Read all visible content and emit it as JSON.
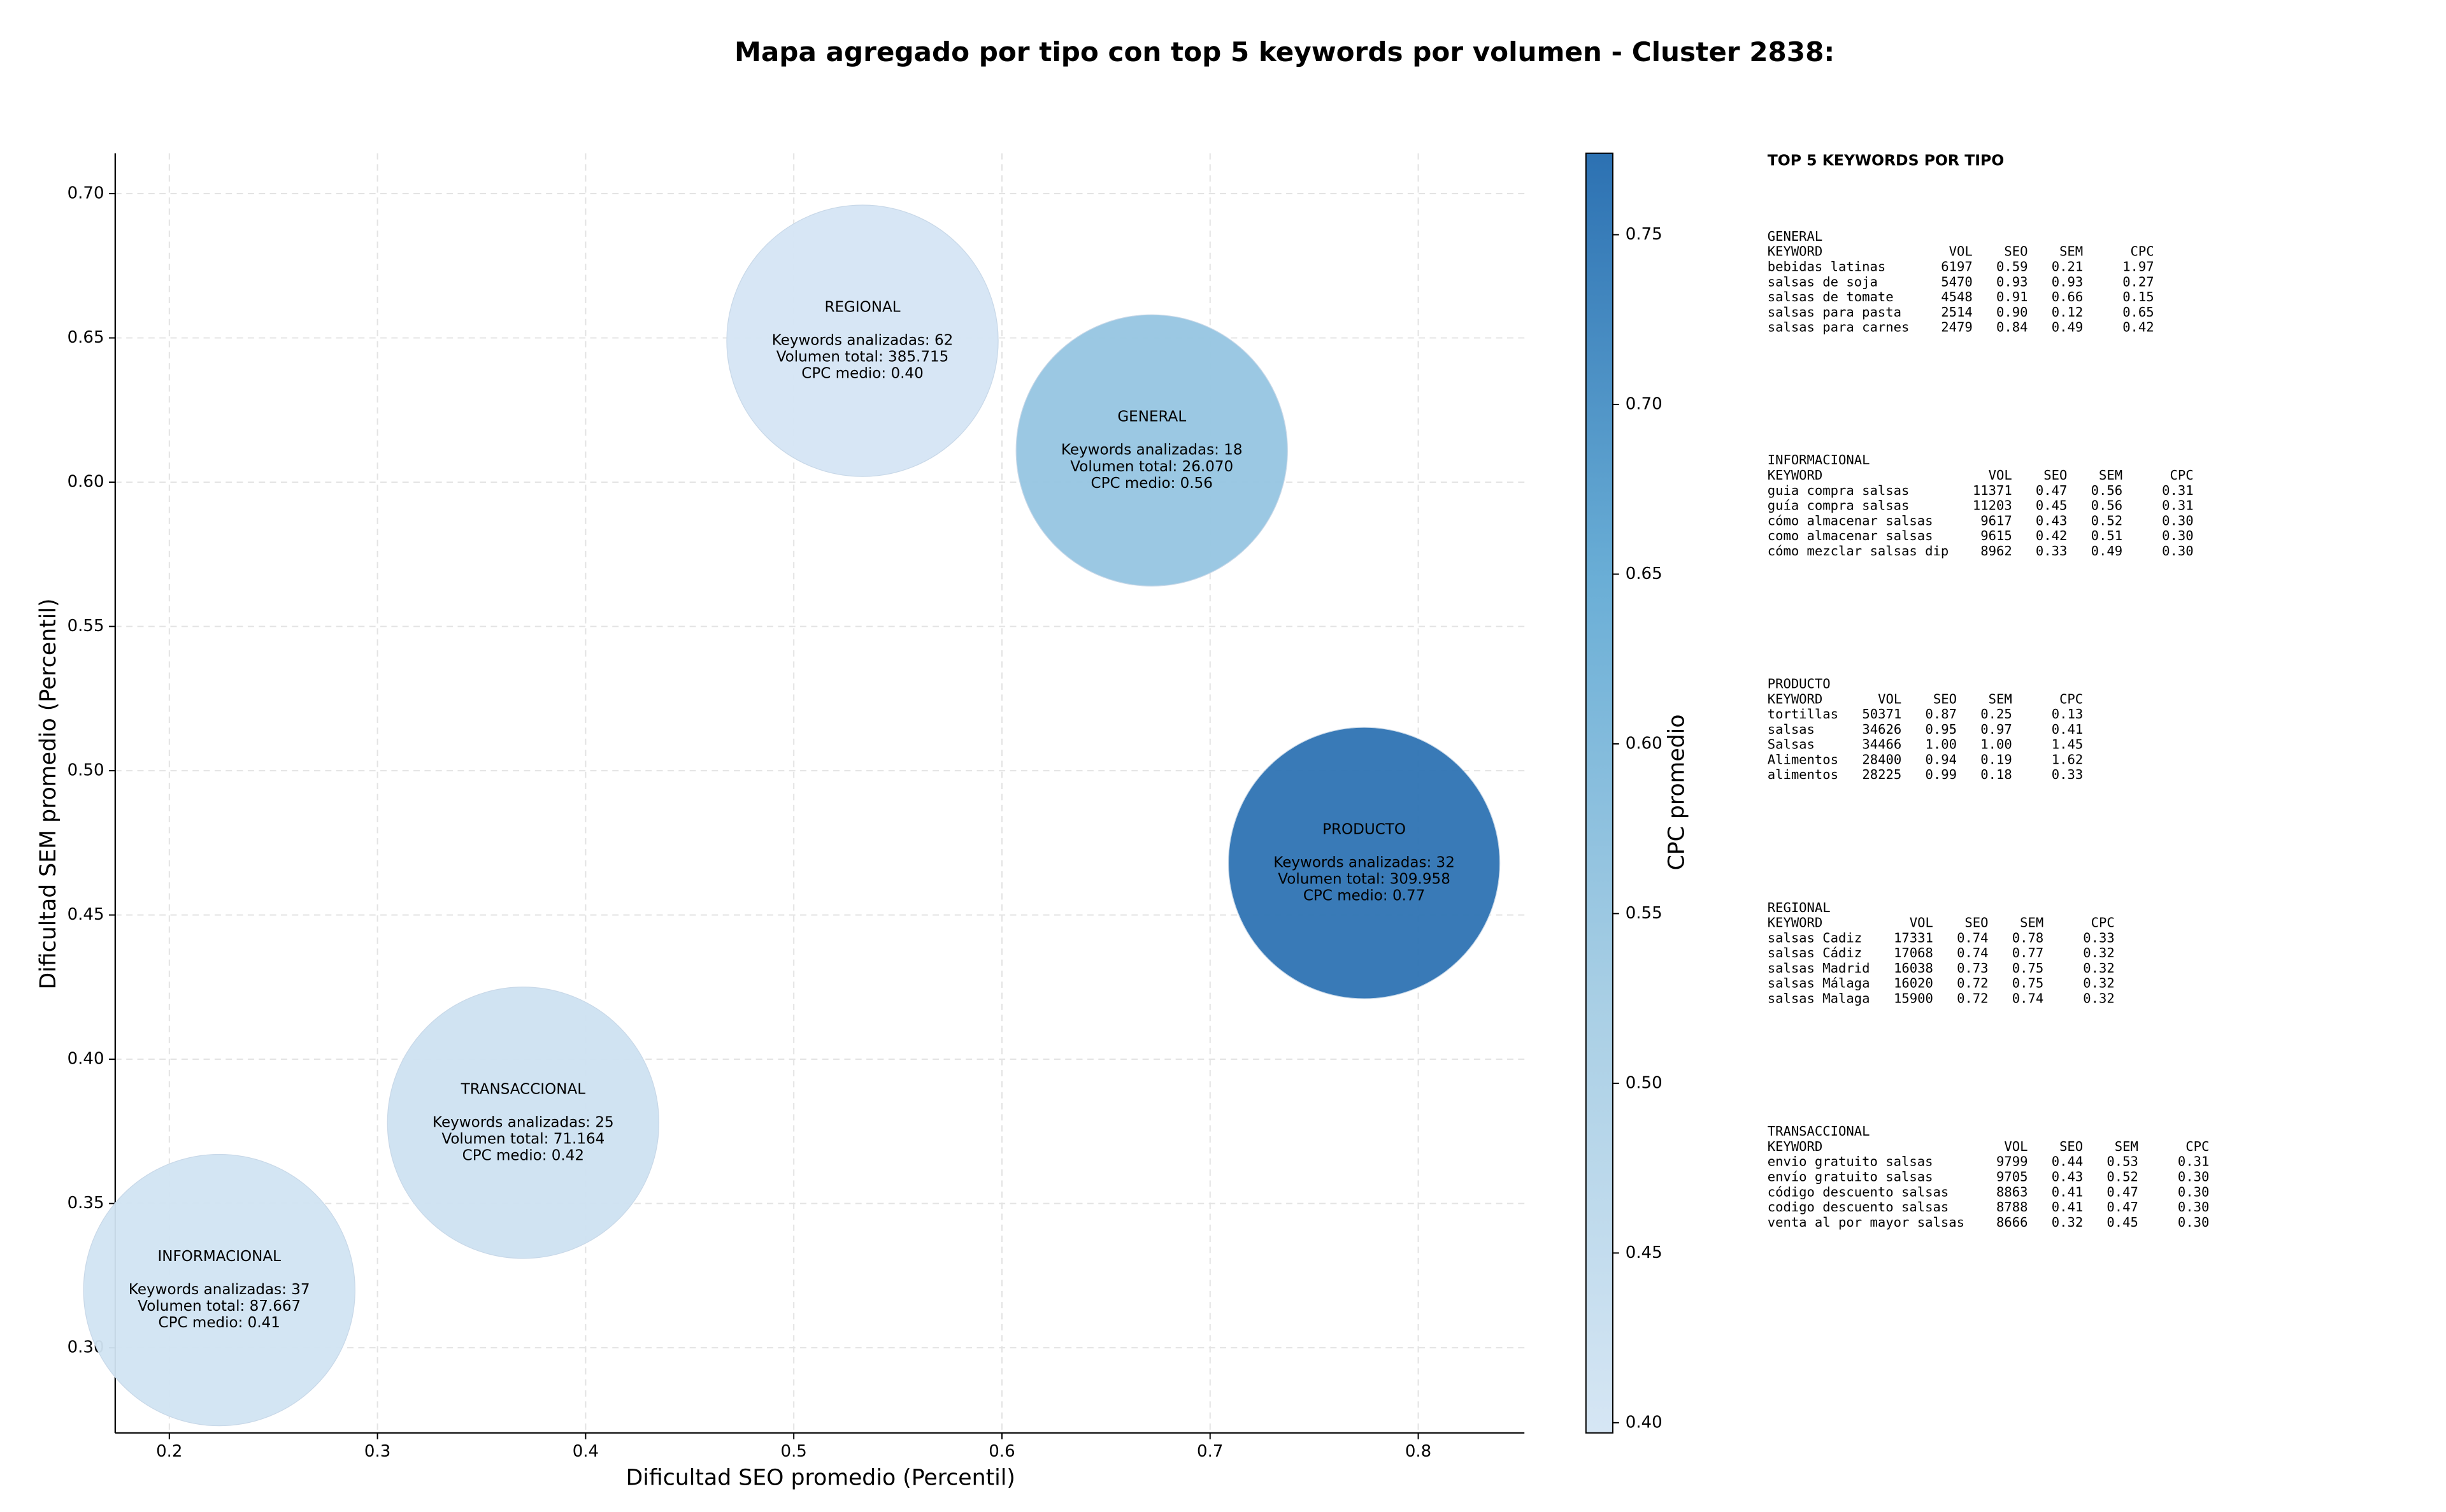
{
  "chart_data": {
    "type": "scatter",
    "title": "Mapa agregado por tipo con top 5 keywords por volumen - Cluster 2838:",
    "xlabel": "Dificultad SEO promedio (Percentil)",
    "ylabel": "Dificultad SEM promedio (Percentil)",
    "xlim": [
      0.174,
      0.851
    ],
    "ylim": [
      0.2705,
      0.714
    ],
    "xticks": [
      0.2,
      0.3,
      0.4,
      0.5,
      0.6,
      0.7,
      0.8
    ],
    "yticks": [
      {
        "value": 0.3,
        "label": "0.30"
      },
      {
        "value": 0.35,
        "label": "0.35"
      },
      {
        "value": 0.4,
        "label": "0.40"
      },
      {
        "value": 0.45,
        "label": "0.45"
      },
      {
        "value": 0.5,
        "label": "0.50"
      },
      {
        "value": 0.55,
        "label": "0.55"
      },
      {
        "value": 0.6,
        "label": "0.60"
      },
      {
        "value": 0.65,
        "label": "0.65"
      },
      {
        "value": 0.7,
        "label": "0.70"
      }
    ],
    "grid": true,
    "x": [
      0.533,
      0.672,
      0.774,
      0.37,
      0.224
    ],
    "y": [
      0.649,
      0.611,
      0.468,
      0.378,
      0.32
    ],
    "color_values": [
      0.4,
      0.56,
      0.77,
      0.42,
      0.41
    ],
    "labels": [
      "REGIONAL",
      "GENERAL",
      "PRODUCTO",
      "TRANSACCIONAL",
      "INFORMACIONAL"
    ],
    "annotations": [
      [
        "Keywords analizadas: 62",
        "Volumen total: 385.715",
        "CPC medio: 0.40"
      ],
      [
        "Keywords analizadas: 18",
        "Volumen total: 26.070",
        "CPC medio: 0.56"
      ],
      [
        "Keywords analizadas: 32",
        "Volumen total: 309.958",
        "CPC medio: 0.77"
      ],
      [
        "Keywords analizadas: 25",
        "Volumen total: 71.164",
        "CPC medio: 0.42"
      ],
      [
        "Keywords analizadas: 37",
        "Volumen total: 87.667",
        "CPC medio: 0.41"
      ]
    ],
    "colormap": [
      "#d6e6f4",
      "#a9cfe5",
      "#6aaed6",
      "#2c71b2"
    ],
    "clim": [
      0.397,
      0.774
    ],
    "cticks": [
      {
        "value": 0.4,
        "label": "0.40"
      },
      {
        "value": 0.45,
        "label": "0.45"
      },
      {
        "value": 0.5,
        "label": "0.50"
      },
      {
        "value": 0.55,
        "label": "0.55"
      },
      {
        "value": 0.6,
        "label": "0.60"
      },
      {
        "value": 0.65,
        "label": "0.65"
      },
      {
        "value": 0.7,
        "label": "0.70"
      },
      {
        "value": 0.75,
        "label": "0.75"
      }
    ],
    "colorbar_label": "CPC promedio"
  },
  "panel": {
    "title": "TOP 5 KEYWORDS POR TIPO",
    "header": [
      "KEYWORD",
      "VOL",
      "SEO",
      "SEM",
      "CPC"
    ],
    "sections": [
      {
        "name": "GENERAL",
        "rows": [
          [
            "bebidas latinas",
            "6197",
            "0.59",
            "0.21",
            "1.97"
          ],
          [
            "salsas de soja",
            "5470",
            "0.93",
            "0.93",
            "0.27"
          ],
          [
            "salsas de tomate",
            "4548",
            "0.91",
            "0.66",
            "0.15"
          ],
          [
            "salsas para pasta",
            "2514",
            "0.90",
            "0.12",
            "0.65"
          ],
          [
            "salsas para carnes",
            "2479",
            "0.84",
            "0.49",
            "0.42"
          ]
        ]
      },
      {
        "name": "INFORMACIONAL",
        "rows": [
          [
            "guia compra salsas",
            "11371",
            "0.47",
            "0.56",
            "0.31"
          ],
          [
            "guía compra salsas",
            "11203",
            "0.45",
            "0.56",
            "0.31"
          ],
          [
            "cómo almacenar salsas",
            "9617",
            "0.43",
            "0.52",
            "0.30"
          ],
          [
            "como almacenar salsas",
            "9615",
            "0.42",
            "0.51",
            "0.30"
          ],
          [
            "cómo mezclar salsas dip",
            "8962",
            "0.33",
            "0.49",
            "0.30"
          ]
        ]
      },
      {
        "name": "PRODUCTO",
        "rows": [
          [
            "tortillas",
            "50371",
            "0.87",
            "0.25",
            "0.13"
          ],
          [
            "salsas",
            "34626",
            "0.95",
            "0.97",
            "0.41"
          ],
          [
            "Salsas",
            "34466",
            "1.00",
            "1.00",
            "1.45"
          ],
          [
            "Alimentos",
            "28400",
            "0.94",
            "0.19",
            "1.62"
          ],
          [
            "alimentos",
            "28225",
            "0.99",
            "0.18",
            "0.33"
          ]
        ]
      },
      {
        "name": "REGIONAL",
        "rows": [
          [
            "salsas Cadiz",
            "17331",
            "0.74",
            "0.78",
            "0.33"
          ],
          [
            "salsas Cádiz",
            "17068",
            "0.74",
            "0.77",
            "0.32"
          ],
          [
            "salsas Madrid",
            "16038",
            "0.73",
            "0.75",
            "0.32"
          ],
          [
            "salsas Málaga",
            "16020",
            "0.72",
            "0.75",
            "0.32"
          ],
          [
            "salsas Malaga",
            "15900",
            "0.72",
            "0.74",
            "0.32"
          ]
        ]
      },
      {
        "name": "TRANSACCIONAL",
        "rows": [
          [
            "envio gratuito salsas",
            "9799",
            "0.44",
            "0.53",
            "0.31"
          ],
          [
            "envío gratuito salsas",
            "9705",
            "0.43",
            "0.52",
            "0.30"
          ],
          [
            "código descuento salsas",
            "8863",
            "0.41",
            "0.47",
            "0.30"
          ],
          [
            "codigo descuento salsas",
            "8788",
            "0.41",
            "0.47",
            "0.30"
          ],
          [
            "venta al por mayor salsas",
            "8666",
            "0.32",
            "0.45",
            "0.30"
          ]
        ]
      }
    ]
  }
}
